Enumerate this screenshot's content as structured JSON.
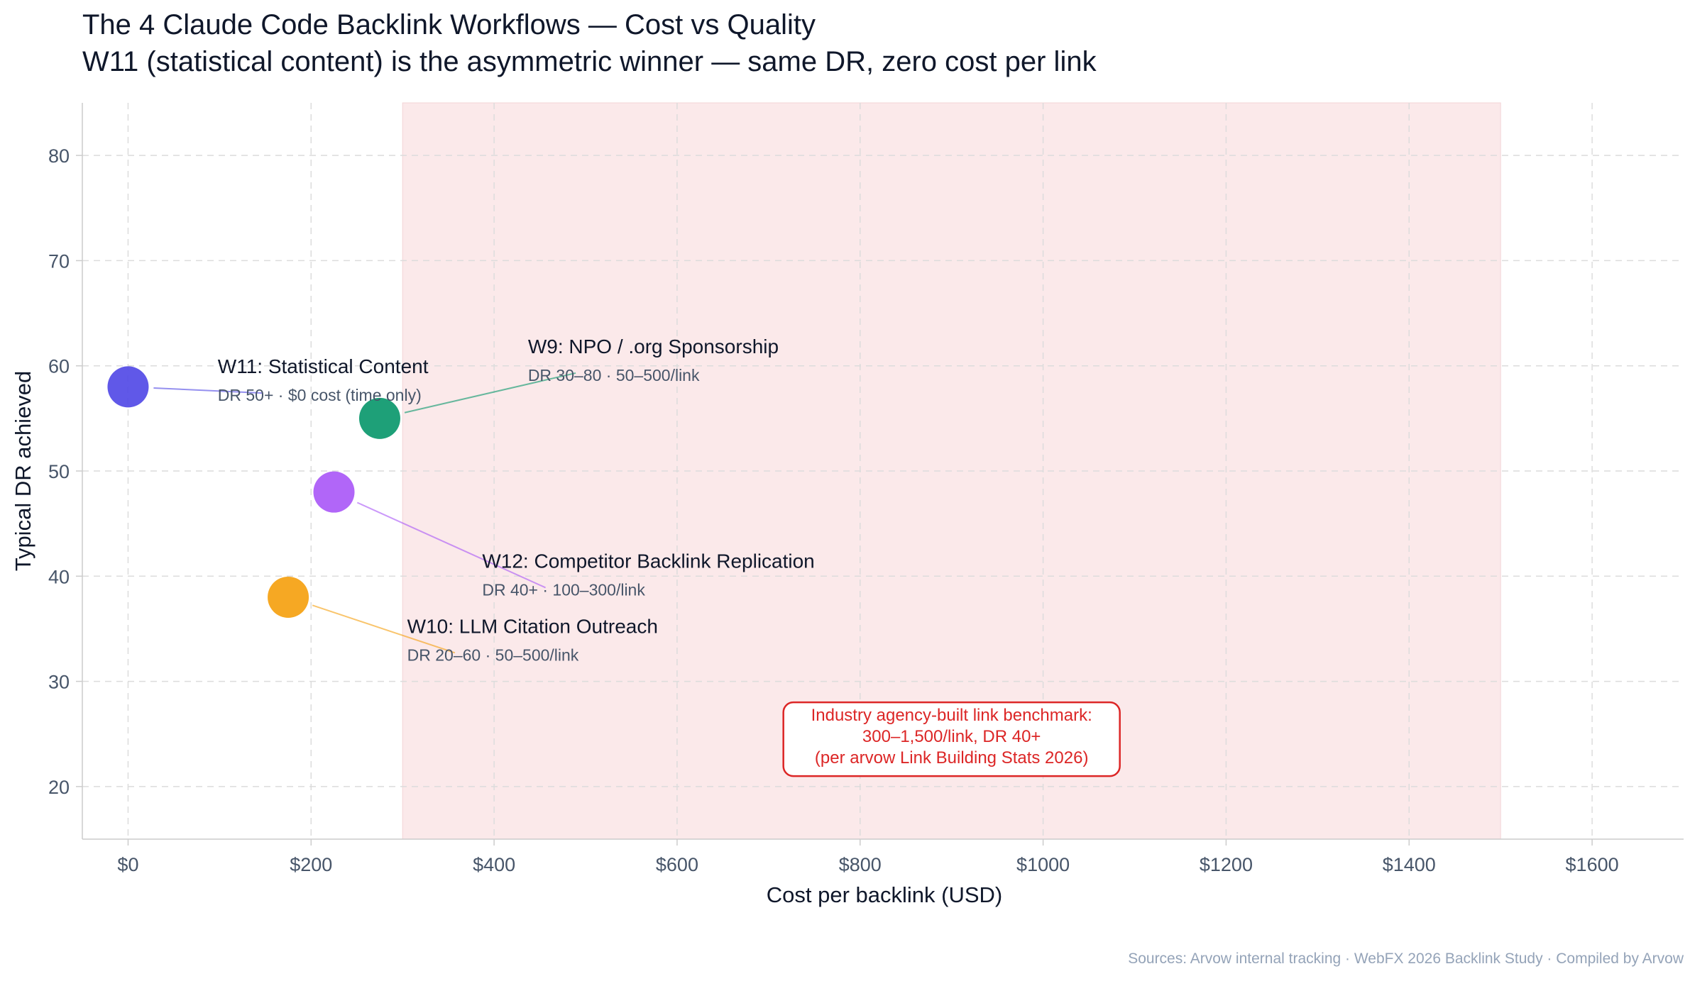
{
  "chart_data": {
    "type": "scatter",
    "title": "The 4 Claude Code Backlink Workflows — Cost vs Quality",
    "subtitle": "W11 (statistical content) is the asymmetric winner — same DR, zero cost per link",
    "xlabel": "Cost per backlink (USD)",
    "ylabel": "Typical DR achieved",
    "xlim": [
      -50,
      1700
    ],
    "ylim": [
      15,
      85
    ],
    "x_ticks": [
      0,
      200,
      400,
      600,
      800,
      1000,
      1200,
      1400,
      1600
    ],
    "x_tick_labels": [
      "$0",
      "$200",
      "$400",
      "$600",
      "$800",
      "$1000",
      "$1200",
      "$1400",
      "$1600"
    ],
    "y_ticks": [
      20,
      30,
      40,
      50,
      60,
      70,
      80
    ],
    "y_tick_labels": [
      "20",
      "30",
      "40",
      "50",
      "60",
      "70",
      "80"
    ],
    "grid": true,
    "points": [
      {
        "x": 0,
        "y": 58,
        "color": "#4f46e5",
        "label": "W11: Statistical Content",
        "sublabel": "DR 50+ · $0 cost (time only)",
        "label_x": 98,
        "label_y": 59.3
      },
      {
        "x": 275,
        "y": 55,
        "color": "#059669",
        "label": "W9: NPO / .org Sponsorship",
        "sublabel": "DR 30–80 · 50–500/link",
        "label_x": 437,
        "label_y": 61.2
      },
      {
        "x": 225,
        "y": 48,
        "color": "#a855f7",
        "label": "W12: Competitor Backlink Replication",
        "sublabel": "DR 40+ · 100–300/link",
        "label_x": 387,
        "label_y": 40.8
      },
      {
        "x": 175,
        "y": 38,
        "color": "#f59e0b",
        "label": "W10: LLM Citation Outreach",
        "sublabel": "DR 20–60 · 50–500/link",
        "label_x": 305,
        "label_y": 34.6
      }
    ],
    "shaded_region": {
      "x_from": 300,
      "x_to": 1500,
      "color": "#fbe9ea"
    },
    "benchmark_box": {
      "lines": [
        "Industry agency-built link benchmark:",
        "300–1,500/link, DR 40+",
        "(per arvow Link Building Stats 2026)"
      ],
      "color": "#dc2626",
      "center_x": 900,
      "center_y": 24.5
    },
    "source_note": "Sources: Arvow internal tracking · WebFX 2026 Backlink Study · Compiled by Arvow"
  }
}
